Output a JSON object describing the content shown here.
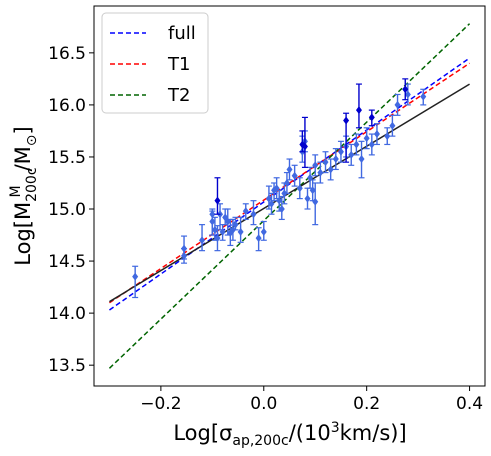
{
  "chart_data": {
    "type": "scatter",
    "xlabel": "Log[σ_ap,200c/(10³km/s)]",
    "ylabel": "Log[M^M_200c/M_⊙]",
    "xlim": [
      -0.33,
      0.43
    ],
    "ylim": [
      13.3,
      16.95
    ],
    "x_ticks": [
      -0.2,
      0.0,
      0.2,
      0.4
    ],
    "y_ticks": [
      13.5,
      14.0,
      14.5,
      15.0,
      15.5,
      16.0,
      16.5
    ],
    "x_tick_labels": [
      "−0.2",
      "0.0",
      "0.2",
      "0.4"
    ],
    "y_tick_labels": [
      "13.5",
      "14.0",
      "14.5",
      "15.0",
      "15.5",
      "16.0",
      "16.5"
    ],
    "grid": false,
    "legend_position": "top-left",
    "legend": [
      {
        "label": "full",
        "color": "#0000ff",
        "style": "dashed"
      },
      {
        "label": "T1",
        "color": "#ff0000",
        "style": "dashed"
      },
      {
        "label": "T2",
        "color": "#006400",
        "style": "dashed"
      }
    ],
    "lines": [
      {
        "name": "full",
        "color": "#0000ff",
        "style": "dashed",
        "x": [
          -0.3,
          0.4
        ],
        "y": [
          14.03,
          16.45
        ]
      },
      {
        "name": "T1",
        "color": "#ff0000",
        "style": "dashed",
        "x": [
          -0.3,
          0.4
        ],
        "y": [
          14.1,
          16.4
        ]
      },
      {
        "name": "T2",
        "color": "#006400",
        "style": "dashed",
        "x": [
          -0.3,
          0.4
        ],
        "y": [
          13.47,
          16.78
        ]
      },
      {
        "name": "",
        "color": "#222222",
        "style": "solid",
        "x": [
          -0.3,
          0.4
        ],
        "y": [
          14.11,
          16.2
        ]
      }
    ],
    "series": [
      {
        "name": "",
        "color": "#4169e1",
        "marker": "diamond",
        "points": [
          {
            "x": -0.25,
            "y": 14.35,
            "lo": 14.15,
            "hi": 14.45
          },
          {
            "x": -0.155,
            "y": 14.62,
            "lo": 14.52,
            "hi": 14.74
          },
          {
            "x": -0.155,
            "y": 14.55,
            "lo": 14.48,
            "hi": 14.62
          },
          {
            "x": -0.12,
            "y": 14.7,
            "lo": 14.6,
            "hi": 14.85
          },
          {
            "x": -0.1,
            "y": 14.95,
            "lo": 14.75,
            "hi": 15.0
          },
          {
            "x": -0.1,
            "y": 14.88,
            "lo": 14.75,
            "hi": 14.98
          },
          {
            "x": -0.095,
            "y": 14.8,
            "lo": 14.7,
            "hi": 14.92
          },
          {
            "x": -0.09,
            "y": 14.72,
            "lo": 14.6,
            "hi": 14.84
          },
          {
            "x": -0.085,
            "y": 14.95,
            "lo": 14.8,
            "hi": 15.05
          },
          {
            "x": -0.08,
            "y": 14.78,
            "lo": 14.7,
            "hi": 14.85
          },
          {
            "x": -0.075,
            "y": 14.92,
            "lo": 14.85,
            "hi": 15.0
          },
          {
            "x": -0.07,
            "y": 14.88,
            "lo": 14.75,
            "hi": 15.0
          },
          {
            "x": -0.065,
            "y": 14.77,
            "lo": 14.65,
            "hi": 14.9
          },
          {
            "x": -0.06,
            "y": 14.8,
            "lo": 14.7,
            "hi": 14.9
          },
          {
            "x": -0.055,
            "y": 14.85,
            "lo": 14.8,
            "hi": 14.92
          },
          {
            "x": -0.045,
            "y": 14.78,
            "lo": 14.68,
            "hi": 14.92
          },
          {
            "x": -0.035,
            "y": 14.98,
            "lo": 14.9,
            "hi": 15.05
          },
          {
            "x": -0.02,
            "y": 14.95,
            "lo": 14.85,
            "hi": 15.08
          },
          {
            "x": -0.01,
            "y": 14.72,
            "lo": 14.6,
            "hi": 14.82
          },
          {
            "x": 0.0,
            "y": 14.78,
            "lo": 14.7,
            "hi": 14.88
          },
          {
            "x": 0.01,
            "y": 15.1,
            "lo": 15.0,
            "hi": 15.22
          },
          {
            "x": 0.015,
            "y": 15.05,
            "lo": 14.95,
            "hi": 15.15
          },
          {
            "x": 0.02,
            "y": 15.18,
            "lo": 15.08,
            "hi": 15.25
          },
          {
            "x": 0.025,
            "y": 15.2,
            "lo": 15.1,
            "hi": 15.3
          },
          {
            "x": 0.03,
            "y": 15.08,
            "lo": 14.98,
            "hi": 15.18
          },
          {
            "x": 0.035,
            "y": 15.0,
            "lo": 14.9,
            "hi": 15.12
          },
          {
            "x": 0.04,
            "y": 15.15,
            "lo": 15.05,
            "hi": 15.25
          },
          {
            "x": 0.045,
            "y": 15.25,
            "lo": 15.15,
            "hi": 15.35
          },
          {
            "x": 0.05,
            "y": 15.38,
            "lo": 15.28,
            "hi": 15.48
          },
          {
            "x": 0.06,
            "y": 15.32,
            "lo": 15.22,
            "hi": 15.42
          },
          {
            "x": 0.07,
            "y": 15.2,
            "lo": 15.1,
            "hi": 15.3
          },
          {
            "x": 0.075,
            "y": 15.55,
            "lo": 15.45,
            "hi": 15.7
          },
          {
            "x": 0.08,
            "y": 15.65,
            "lo": 15.55,
            "hi": 15.75
          },
          {
            "x": 0.085,
            "y": 15.1,
            "lo": 15.0,
            "hi": 15.2
          },
          {
            "x": 0.09,
            "y": 15.3,
            "lo": 15.2,
            "hi": 15.4
          },
          {
            "x": 0.095,
            "y": 15.18,
            "lo": 15.08,
            "hi": 15.28
          },
          {
            "x": 0.1,
            "y": 15.07,
            "lo": 14.85,
            "hi": 15.25
          },
          {
            "x": 0.1,
            "y": 15.42,
            "lo": 15.32,
            "hi": 15.52
          },
          {
            "x": 0.11,
            "y": 15.35,
            "lo": 15.25,
            "hi": 15.45
          },
          {
            "x": 0.12,
            "y": 15.45,
            "lo": 15.35,
            "hi": 15.55
          },
          {
            "x": 0.13,
            "y": 15.38,
            "lo": 15.28,
            "hi": 15.48
          },
          {
            "x": 0.14,
            "y": 15.48,
            "lo": 15.38,
            "hi": 15.58
          },
          {
            "x": 0.15,
            "y": 15.55,
            "lo": 15.45,
            "hi": 15.65
          },
          {
            "x": 0.16,
            "y": 15.6,
            "lo": 15.5,
            "hi": 15.7
          },
          {
            "x": 0.17,
            "y": 15.52,
            "lo": 15.42,
            "hi": 15.62
          },
          {
            "x": 0.18,
            "y": 15.62,
            "lo": 15.52,
            "hi": 15.72
          },
          {
            "x": 0.19,
            "y": 15.48,
            "lo": 15.3,
            "hi": 15.65
          },
          {
            "x": 0.2,
            "y": 15.68,
            "lo": 15.58,
            "hi": 15.78
          },
          {
            "x": 0.21,
            "y": 15.62,
            "lo": 15.52,
            "hi": 15.72
          },
          {
            "x": 0.22,
            "y": 15.72,
            "lo": 15.62,
            "hi": 15.82
          },
          {
            "x": 0.24,
            "y": 15.7,
            "lo": 15.62,
            "hi": 15.78
          },
          {
            "x": 0.25,
            "y": 15.8,
            "lo": 15.7,
            "hi": 15.9
          },
          {
            "x": 0.26,
            "y": 16.0,
            "lo": 15.9,
            "hi": 16.1
          },
          {
            "x": 0.28,
            "y": 16.1,
            "lo": 16.0,
            "hi": 16.2
          },
          {
            "x": 0.31,
            "y": 16.08,
            "lo": 16.0,
            "hi": 16.15
          }
        ]
      },
      {
        "name": "",
        "color": "#0000cd",
        "marker": "diamond",
        "points": [
          {
            "x": -0.09,
            "y": 15.08,
            "lo": 14.95,
            "hi": 15.3
          },
          {
            "x": 0.075,
            "y": 15.62,
            "lo": 15.55,
            "hi": 15.75
          },
          {
            "x": 0.08,
            "y": 15.6,
            "lo": 15.4,
            "hi": 15.88
          },
          {
            "x": 0.16,
            "y": 15.85,
            "lo": 15.45,
            "hi": 15.92
          },
          {
            "x": 0.185,
            "y": 15.95,
            "lo": 15.78,
            "hi": 16.2
          },
          {
            "x": 0.21,
            "y": 15.88,
            "lo": 15.8,
            "hi": 15.95
          },
          {
            "x": 0.275,
            "y": 16.15,
            "lo": 16.05,
            "hi": 16.25
          }
        ]
      }
    ]
  }
}
